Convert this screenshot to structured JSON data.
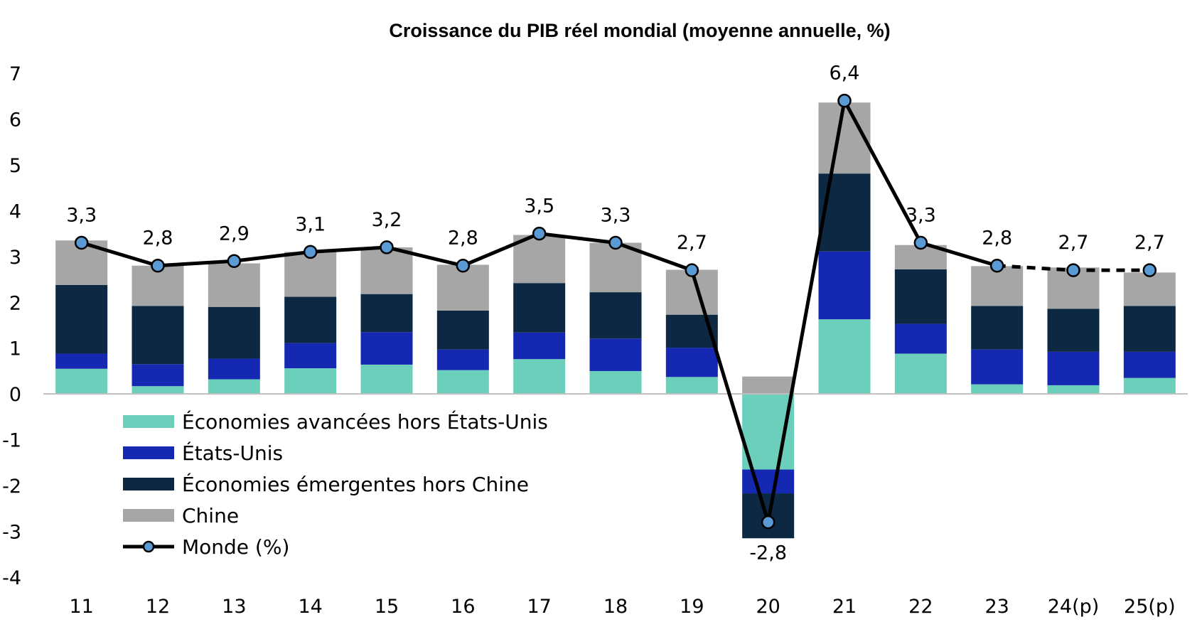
{
  "chart_data": {
    "type": "bar",
    "stacked": true,
    "title": "Croissance du PIB réel mondial (moyenne annuelle, %)",
    "xlabel": "",
    "ylabel": "",
    "ylim": [
      -4,
      7
    ],
    "yticks": [
      "7",
      "6",
      "5",
      "4",
      "3",
      "2",
      "1",
      "0",
      "-1",
      "-2",
      "-3",
      "-4"
    ],
    "grid": false,
    "legend_position": "bottom-left",
    "categories": [
      "11",
      "12",
      "13",
      "14",
      "15",
      "16",
      "17",
      "18",
      "19",
      "20",
      "21",
      "22",
      "23",
      "24(p)",
      "25(p)"
    ],
    "series": [
      {
        "name": "Économies avancées hors États-Unis",
        "color": "#6ccfbc",
        "values": [
          0.55,
          0.17,
          0.32,
          0.56,
          0.64,
          0.52,
          0.76,
          0.5,
          0.37,
          -1.65,
          1.63,
          0.88,
          0.21,
          0.19,
          0.35
        ]
      },
      {
        "name": "États-Unis",
        "color": "#1428b1",
        "values": [
          0.33,
          0.48,
          0.45,
          0.55,
          0.71,
          0.45,
          0.58,
          0.71,
          0.64,
          -0.52,
          1.48,
          0.65,
          0.76,
          0.73,
          0.57
        ]
      },
      {
        "name": "Économies émergentes hors Chine",
        "color": "#0d2842",
        "values": [
          1.5,
          1.27,
          1.13,
          1.01,
          0.83,
          0.85,
          1.08,
          1.01,
          0.72,
          -0.98,
          1.7,
          1.19,
          0.95,
          0.94,
          1.0
        ]
      },
      {
        "name": "Chine",
        "color": "#a6a6a6",
        "values": [
          0.97,
          0.88,
          0.95,
          0.98,
          1.02,
          1.0,
          1.05,
          1.08,
          0.98,
          0.38,
          1.55,
          0.53,
          0.87,
          0.9,
          0.73
        ]
      }
    ],
    "line": {
      "name": "Monde (%)",
      "color": "#000000",
      "marker_color": "#5b9bd5",
      "values": [
        3.3,
        2.8,
        2.9,
        3.1,
        3.2,
        2.8,
        3.5,
        3.3,
        2.7,
        -2.8,
        6.4,
        3.3,
        2.8,
        2.7,
        2.7
      ],
      "labels": [
        "3,3",
        "2,8",
        "2,9",
        "3,1",
        "3,2",
        "2,8",
        "3,5",
        "3,3",
        "2,7",
        "-2,8",
        "6,4",
        "3,3",
        "2,8",
        "2,7",
        "2,7"
      ],
      "dashed_from_index": 12
    }
  }
}
